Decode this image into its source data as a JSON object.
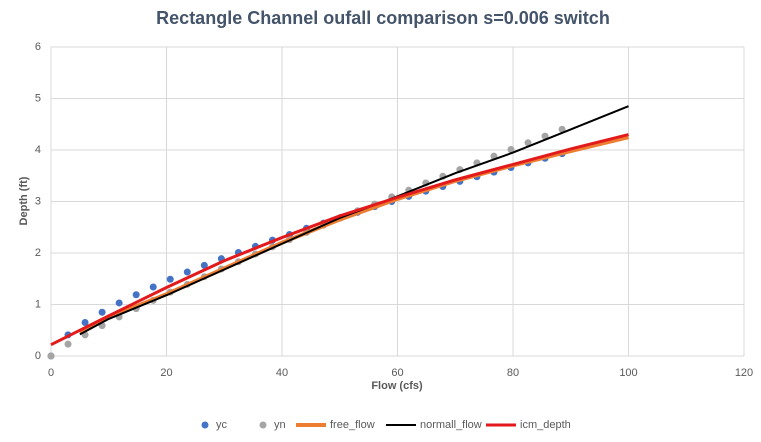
{
  "chart_data": {
    "type": "scatter",
    "title": "Rectangle Channel oufall comparison s=0.006 switch",
    "x_label": "Flow (cfs)",
    "y_label": "Depth (ft)",
    "xlim": [
      0,
      120
    ],
    "xticks": [
      0,
      20,
      40,
      60,
      80,
      100,
      120
    ],
    "ylim": [
      0,
      6
    ],
    "yticks": [
      0,
      1,
      2,
      3,
      4,
      5,
      6
    ],
    "grid": true,
    "legend": "bottom",
    "series": [
      {
        "name": "yc",
        "type": "scatter",
        "color": "#4472c4",
        "x": [
          0,
          2.95,
          5.9,
          8.85,
          11.8,
          14.75,
          17.7,
          20.65,
          23.6,
          26.55,
          29.5,
          32.45,
          35.4,
          38.35,
          41.3,
          44.25,
          47.2,
          50.15,
          53.1,
          56.05,
          59,
          61.95,
          64.9,
          67.85,
          70.8,
          73.75,
          76.7,
          79.65,
          82.6,
          85.55,
          88.5
        ],
        "values": [
          0,
          0.41,
          0.65,
          0.85,
          1.03,
          1.19,
          1.34,
          1.49,
          1.63,
          1.76,
          1.89,
          2.01,
          2.13,
          2.25,
          2.36,
          2.48,
          2.58,
          2.69,
          2.79,
          2.9,
          3.0,
          3.1,
          3.2,
          3.29,
          3.39,
          3.48,
          3.57,
          3.66,
          3.75,
          3.84,
          3.93
        ]
      },
      {
        "name": "yn",
        "type": "scatter",
        "color": "#a5a5a5",
        "x": [
          0,
          2.95,
          5.9,
          8.85,
          11.8,
          14.75,
          17.7,
          20.65,
          23.6,
          26.55,
          29.5,
          32.45,
          35.4,
          38.35,
          41.3,
          44.25,
          47.2,
          50.15,
          53.1,
          56.05,
          59,
          61.95,
          64.9,
          67.85,
          70.8,
          73.75,
          76.7,
          79.65,
          82.6,
          85.55,
          88.5
        ],
        "values": [
          0,
          0.23,
          0.41,
          0.59,
          0.76,
          0.92,
          1.08,
          1.24,
          1.39,
          1.54,
          1.69,
          1.83,
          1.98,
          2.12,
          2.26,
          2.4,
          2.54,
          2.68,
          2.82,
          2.95,
          3.09,
          3.22,
          3.36,
          3.49,
          3.62,
          3.75,
          3.88,
          4.01,
          4.14,
          4.27,
          4.4
        ]
      },
      {
        "name": "free_flow",
        "type": "line",
        "color": "#ed7d31",
        "width": 4,
        "x": [
          5,
          10,
          20,
          30,
          40,
          50,
          60,
          70,
          80,
          90,
          100
        ],
        "values": [
          0.45,
          0.75,
          1.2,
          1.7,
          2.2,
          2.65,
          3.05,
          3.4,
          3.7,
          3.98,
          4.25
        ]
      },
      {
        "name": "normall_flow",
        "type": "line",
        "color": "#000000",
        "width": 2,
        "x": [
          5,
          10,
          20,
          30,
          40,
          50,
          60,
          70,
          80,
          90,
          100
        ],
        "values": [
          0.42,
          0.72,
          1.18,
          1.68,
          2.18,
          2.68,
          3.1,
          3.55,
          3.95,
          4.4,
          4.85
        ]
      },
      {
        "name": "icm_depth",
        "type": "line",
        "color": "#e31a1c",
        "width": 3,
        "x": [
          0,
          10,
          20,
          30,
          40,
          50,
          60,
          70,
          80,
          90,
          100
        ],
        "values": [
          0.22,
          0.78,
          1.33,
          1.85,
          2.3,
          2.72,
          3.08,
          3.42,
          3.72,
          4.02,
          4.3
        ]
      }
    ]
  }
}
